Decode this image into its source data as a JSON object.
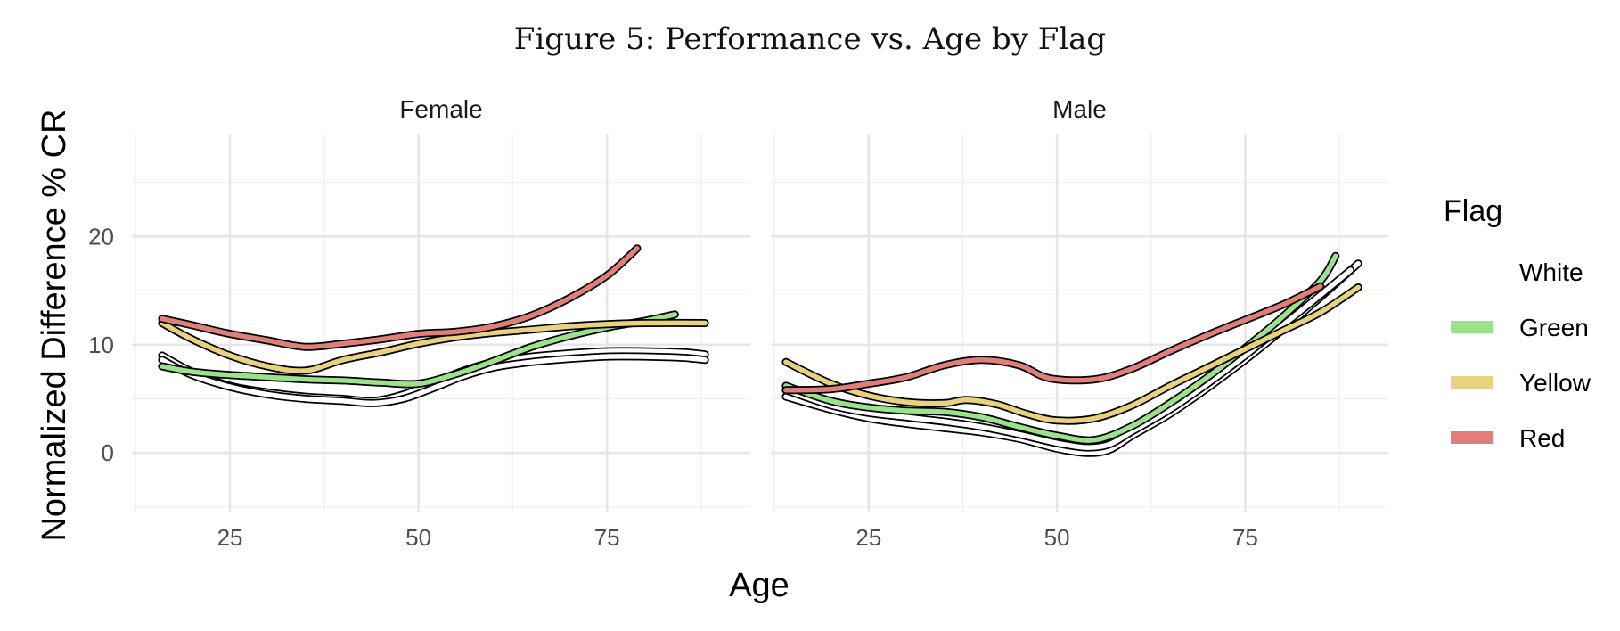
{
  "chart_data": {
    "type": "line",
    "title": "Figure 5: Performance vs. Age by Flag",
    "xlabel": "Age",
    "ylabel": "Normalized Difference % CR",
    "xlim": [
      12,
      94
    ],
    "ylim": [
      -5.5,
      29.5
    ],
    "x_ticks": [
      25,
      50,
      75
    ],
    "y_ticks": [
      0,
      10,
      20
    ],
    "grid": true,
    "legend": {
      "title": "Flag",
      "position": "right",
      "entries": [
        {
          "name": "White",
          "color": "#ffffff"
        },
        {
          "name": "Green",
          "color": "#9be38a"
        },
        {
          "name": "Yellow",
          "color": "#e8d27f"
        },
        {
          "name": "Red",
          "color": "#e07f7a"
        }
      ]
    },
    "panels": [
      {
        "label": "Female",
        "series": [
          {
            "name": "White",
            "points": [
              [
                16,
                9.0
              ],
              [
                20,
                7.5
              ],
              [
                25,
                6.2
              ],
              [
                30,
                5.6
              ],
              [
                35,
                5.2
              ],
              [
                40,
                5.0
              ],
              [
                44,
                4.8
              ],
              [
                48,
                5.4
              ],
              [
                52,
                6.5
              ],
              [
                56,
                7.6
              ],
              [
                60,
                8.4
              ],
              [
                65,
                8.9
              ],
              [
                70,
                9.2
              ],
              [
                75,
                9.4
              ],
              [
                80,
                9.4
              ],
              [
                85,
                9.3
              ],
              [
                88,
                9.1
              ]
            ]
          },
          {
            "name": "White",
            "points": [
              [
                16,
                8.6
              ],
              [
                20,
                7.2
              ],
              [
                25,
                6.1
              ],
              [
                30,
                5.4
              ],
              [
                35,
                5.0
              ],
              [
                40,
                4.8
              ],
              [
                44,
                4.6
              ],
              [
                48,
                5.0
              ],
              [
                52,
                6.0
              ],
              [
                56,
                7.1
              ],
              [
                60,
                7.9
              ],
              [
                65,
                8.4
              ],
              [
                70,
                8.7
              ],
              [
                75,
                8.9
              ],
              [
                80,
                8.9
              ],
              [
                85,
                8.8
              ],
              [
                88,
                8.6
              ]
            ]
          },
          {
            "name": "Green",
            "points": [
              [
                16,
                8.0
              ],
              [
                20,
                7.5
              ],
              [
                25,
                7.2
              ],
              [
                30,
                7.0
              ],
              [
                35,
                6.8
              ],
              [
                40,
                6.7
              ],
              [
                45,
                6.5
              ],
              [
                50,
                6.4
              ],
              [
                55,
                7.3
              ],
              [
                60,
                8.5
              ],
              [
                65,
                9.8
              ],
              [
                70,
                10.8
              ],
              [
                75,
                11.6
              ],
              [
                80,
                12.2
              ],
              [
                84,
                12.8
              ]
            ]
          },
          {
            "name": "Yellow",
            "points": [
              [
                16,
                12.0
              ],
              [
                20,
                10.5
              ],
              [
                25,
                9.0
              ],
              [
                30,
                8.0
              ],
              [
                35,
                7.6
              ],
              [
                40,
                8.6
              ],
              [
                45,
                9.3
              ],
              [
                50,
                10.1
              ],
              [
                55,
                10.7
              ],
              [
                60,
                11.1
              ],
              [
                65,
                11.4
              ],
              [
                70,
                11.7
              ],
              [
                75,
                11.9
              ],
              [
                80,
                12.0
              ],
              [
                88,
                12.0
              ]
            ]
          },
          {
            "name": "Red",
            "points": [
              [
                16,
                12.4
              ],
              [
                20,
                11.8
              ],
              [
                25,
                11.0
              ],
              [
                30,
                10.4
              ],
              [
                35,
                9.8
              ],
              [
                40,
                10.1
              ],
              [
                45,
                10.5
              ],
              [
                50,
                11.0
              ],
              [
                55,
                11.2
              ],
              [
                60,
                11.7
              ],
              [
                65,
                12.7
              ],
              [
                70,
                14.3
              ],
              [
                75,
                16.4
              ],
              [
                79,
                18.9
              ]
            ]
          }
        ]
      },
      {
        "label": "Male",
        "series": [
          {
            "name": "White",
            "points": [
              [
                14,
                5.2
              ],
              [
                20,
                4.0
              ],
              [
                25,
                3.2
              ],
              [
                30,
                2.7
              ],
              [
                35,
                2.3
              ],
              [
                40,
                1.9
              ],
              [
                45,
                1.3
              ],
              [
                50,
                0.4
              ],
              [
                54,
                0.0
              ],
              [
                57,
                0.3
              ],
              [
                60,
                1.6
              ],
              [
                65,
                3.6
              ],
              [
                70,
                6.0
              ],
              [
                75,
                8.6
              ],
              [
                80,
                11.4
              ],
              [
                85,
                14.4
              ],
              [
                90,
                17.5
              ]
            ]
          },
          {
            "name": "White",
            "points": [
              [
                14,
                5.8
              ],
              [
                20,
                4.4
              ],
              [
                25,
                3.7
              ],
              [
                30,
                3.3
              ],
              [
                35,
                2.9
              ],
              [
                40,
                2.4
              ],
              [
                45,
                1.7
              ],
              [
                50,
                0.9
              ],
              [
                54,
                0.5
              ],
              [
                57,
                0.8
              ],
              [
                60,
                2.0
              ],
              [
                65,
                4.0
              ],
              [
                70,
                6.4
              ],
              [
                75,
                9.0
              ],
              [
                80,
                11.8
              ],
              [
                85,
                14.6
              ],
              [
                89,
                16.9
              ]
            ]
          },
          {
            "name": "Green",
            "points": [
              [
                14,
                6.2
              ],
              [
                20,
                4.8
              ],
              [
                25,
                4.2
              ],
              [
                30,
                3.9
              ],
              [
                35,
                3.8
              ],
              [
                40,
                3.3
              ],
              [
                45,
                2.4
              ],
              [
                50,
                1.6
              ],
              [
                55,
                1.2
              ],
              [
                60,
                2.5
              ],
              [
                65,
                4.6
              ],
              [
                70,
                7.0
              ],
              [
                75,
                9.7
              ],
              [
                80,
                12.6
              ],
              [
                85,
                15.9
              ],
              [
                87,
                18.2
              ]
            ]
          },
          {
            "name": "Yellow",
            "points": [
              [
                14,
                8.4
              ],
              [
                20,
                6.4
              ],
              [
                25,
                5.3
              ],
              [
                30,
                4.7
              ],
              [
                35,
                4.6
              ],
              [
                38,
                4.9
              ],
              [
                42,
                4.5
              ],
              [
                46,
                3.6
              ],
              [
                50,
                3.0
              ],
              [
                55,
                3.2
              ],
              [
                60,
                4.4
              ],
              [
                65,
                6.2
              ],
              [
                70,
                7.9
              ],
              [
                75,
                9.6
              ],
              [
                80,
                11.3
              ],
              [
                85,
                13.0
              ],
              [
                90,
                15.3
              ]
            ]
          },
          {
            "name": "Red",
            "points": [
              [
                14,
                5.8
              ],
              [
                20,
                5.9
              ],
              [
                25,
                6.4
              ],
              [
                30,
                7.0
              ],
              [
                35,
                8.1
              ],
              [
                40,
                8.6
              ],
              [
                45,
                8.1
              ],
              [
                49,
                6.9
              ],
              [
                55,
                6.8
              ],
              [
                60,
                7.8
              ],
              [
                65,
                9.4
              ],
              [
                70,
                10.9
              ],
              [
                75,
                12.3
              ],
              [
                80,
                13.7
              ],
              [
                85,
                15.4
              ]
            ]
          }
        ]
      }
    ]
  }
}
